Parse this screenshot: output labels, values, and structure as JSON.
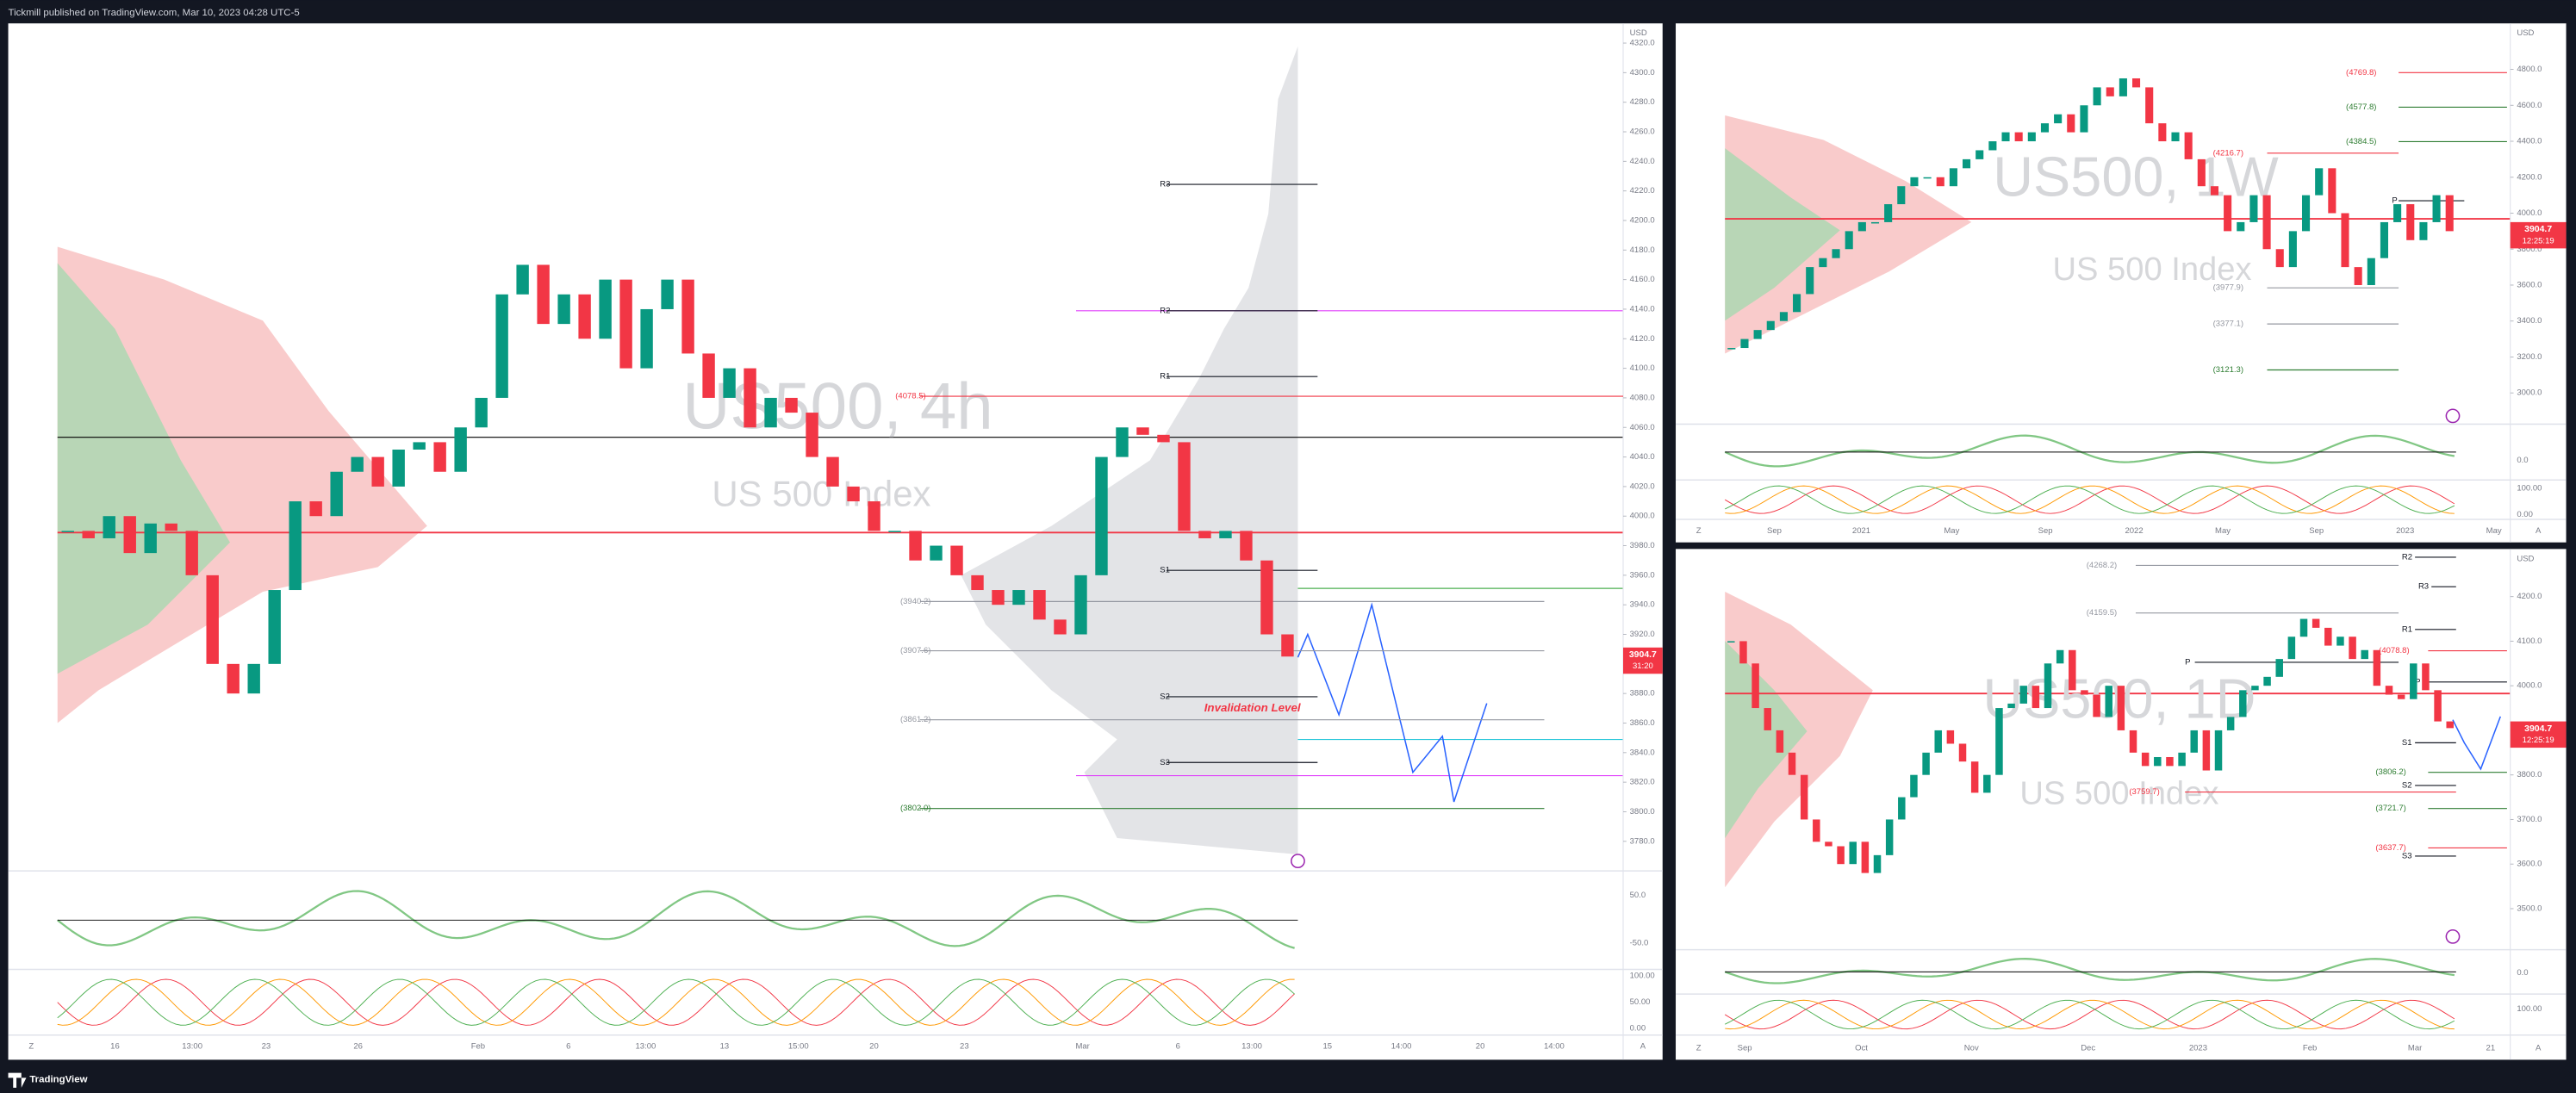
{
  "header": {
    "text": "Tickmill published on TradingView.com, Mar 10, 2023 04:28 UTC-5"
  },
  "footer": {
    "brand": "TradingView"
  },
  "panels": [
    {
      "symbol": "US500, 4h",
      "description": "US 500 Index",
      "currency": "USD",
      "price_axis": [
        "4320.0",
        "4300.0",
        "4280.0",
        "4260.0",
        "4240.0",
        "4220.0",
        "4200.0",
        "4180.0",
        "4160.0",
        "4140.0",
        "4120.0",
        "4100.0",
        "4080.0",
        "4060.0",
        "4040.0",
        "4020.0",
        "4000.0",
        "3980.0",
        "3960.0",
        "3940.0",
        "3920.0",
        "3900.0",
        "3880.0",
        "3860.0",
        "3840.0",
        "3820.0",
        "3800.0",
        "3780.0"
      ],
      "last_price": "3904.7",
      "countdown": "31:20",
      "levels": [
        "R3",
        "R2",
        "R1",
        "(4078.5)",
        "S1",
        "(3940.2)",
        "(3907.6)",
        "S2",
        "Invalidation Level",
        "(3861.2)",
        "S3",
        "(3802.0)"
      ],
      "indicator_axis": [
        "50.0",
        "-50.0",
        "100.00",
        "50.00",
        "0.00"
      ],
      "time_axis": [
        "16",
        "13:00",
        "23",
        "26",
        "Feb",
        "6",
        "13:00",
        "13",
        "15:00",
        "20",
        "23",
        "Mar",
        "6",
        "13:00",
        "15",
        "14:00",
        "20",
        "14:00"
      ],
      "corner_buttons": [
        "Z",
        "A"
      ],
      "closes": [
        3990,
        3985,
        4000,
        3975,
        3995,
        3990,
        3960,
        3900,
        3880,
        3900,
        3950,
        4010,
        4000,
        4030,
        4040,
        4020,
        4045,
        4050,
        4030,
        4060,
        4080,
        4150,
        4170,
        4130,
        4150,
        4120,
        4160,
        4100,
        4140,
        4160,
        4110,
        4080,
        4100,
        4060,
        4080,
        4070,
        4040,
        4020,
        4010,
        3990,
        3990,
        3970,
        3980,
        3960,
        3950,
        3940,
        3950,
        3930,
        3920,
        3960,
        4040,
        4060,
        4055,
        4050,
        3990,
        3985,
        3990,
        3970,
        3920,
        3905
      ]
    },
    {
      "symbol": "US500, 1W",
      "description": "US 500 Index",
      "currency": "USD",
      "price_axis": [
        "4800.0",
        "4600.0",
        "4400.0",
        "4200.0",
        "4000.0",
        "3800.0",
        "3600.0",
        "3400.0",
        "3200.0",
        "3000.0"
      ],
      "last_price": "3904.7",
      "countdown": "12:25:19",
      "levels": [
        "(4769.8)",
        "(4577.8)",
        "(4384.5)",
        "(4216.7)",
        "P",
        "(3977.9)",
        "(3377.1)",
        "(3121.3)"
      ],
      "indicator_axis": [
        "0.0",
        "100.00",
        "0.00"
      ],
      "time_axis": [
        "Sep",
        "2021",
        "May",
        "Sep",
        "2022",
        "May",
        "Sep",
        "2023",
        "May"
      ],
      "corner_buttons": [
        "Z",
        "A"
      ],
      "closes": [
        3250,
        3300,
        3350,
        3400,
        3450,
        3550,
        3700,
        3750,
        3800,
        3900,
        3950,
        3950,
        4050,
        4150,
        4200,
        4200,
        4150,
        4250,
        4300,
        4350,
        4400,
        4450,
        4400,
        4450,
        4500,
        4550,
        4450,
        4600,
        4700,
        4650,
        4750,
        4700,
        4500,
        4400,
        4450,
        4300,
        4150,
        4100,
        3900,
        3950,
        4100,
        3800,
        3700,
        3900,
        4100,
        4250,
        4000,
        3700,
        3600,
        3750,
        3950,
        4050,
        3850,
        3950,
        4100,
        3900
      ]
    },
    {
      "symbol": "US500, 1D",
      "description": "US 500 Index",
      "currency": "USD",
      "price_axis": [
        "4200.0",
        "4100.0",
        "4000.0",
        "3900.0",
        "3800.0",
        "3700.0",
        "3600.0",
        "3500.0"
      ],
      "last_price": "3904.7",
      "countdown": "12:25:19",
      "levels": [
        "(4268.2)",
        "R2",
        "R3",
        "(4159.5)",
        "R1",
        "(4078.8)",
        "P",
        "P",
        "S1",
        "(3806.2)",
        "S2",
        "(3759.7)",
        "(3721.7)",
        "(3637.7)",
        "S3"
      ],
      "indicator_axis": [
        "0.0",
        "100.00"
      ],
      "time_axis": [
        "Sep",
        "Oct",
        "Nov",
        "Dec",
        "2023",
        "Feb",
        "Mar",
        "21"
      ],
      "corner_buttons": [
        "Z",
        "A"
      ],
      "closes": [
        4100,
        4050,
        3950,
        3900,
        3850,
        3800,
        3700,
        3650,
        3640,
        3600,
        3650,
        3580,
        3620,
        3700,
        3750,
        3800,
        3850,
        3900,
        3870,
        3830,
        3760,
        3800,
        3950,
        3960,
        4000,
        3950,
        4050,
        4080,
        3990,
        3980,
        3930,
        4000,
        3900,
        3850,
        3820,
        3840,
        3820,
        3850,
        3900,
        3810,
        3900,
        3930,
        3990,
        4000,
        4020,
        4060,
        4110,
        4150,
        4130,
        4090,
        4110,
        4060,
        4080,
        4000,
        3980,
        3970,
        4050,
        3990,
        3920,
        3905
      ]
    }
  ]
}
